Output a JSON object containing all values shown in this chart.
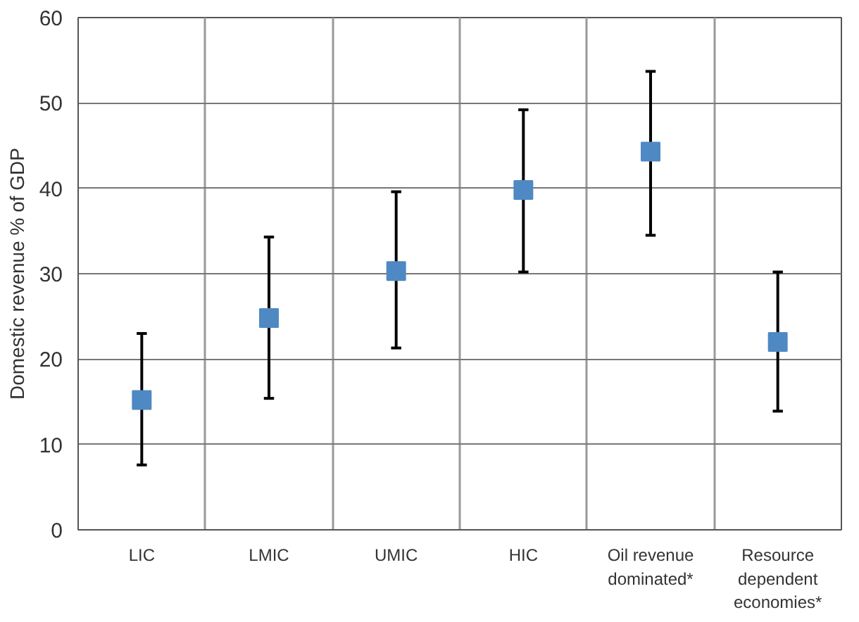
{
  "chart_data": {
    "type": "scatter",
    "ylabel": "Domestic revenue % of GDP",
    "categories": [
      "LIC",
      "LMIC",
      "UMIC",
      "HIC",
      "Oil revenue dominated*",
      "Resource dependent economies*"
    ],
    "values": [
      15.2,
      24.8,
      30.3,
      39.8,
      44.3,
      22.0
    ],
    "errors": [
      [
        7.6,
        23.0
      ],
      [
        15.4,
        34.3
      ],
      [
        21.3,
        39.6
      ],
      [
        30.2,
        49.2
      ],
      [
        34.5,
        53.7
      ],
      [
        13.9,
        30.2
      ]
    ],
    "color": "#4f89c3",
    "marker": "square",
    "ylim": [
      0,
      60
    ],
    "yticks": [
      0,
      10,
      20,
      30,
      40,
      50,
      60
    ],
    "grid": true
  }
}
